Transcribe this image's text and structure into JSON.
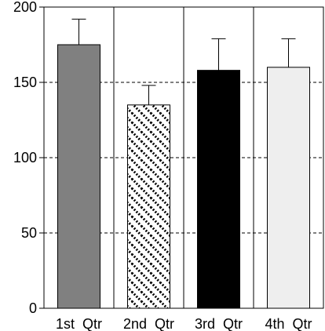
{
  "chart_data": {
    "type": "bar",
    "categories": [
      "1st  Qtr",
      "2nd  Qtr",
      "3rd  Qtr",
      "4th  Qtr"
    ],
    "series": [
      {
        "values": [
          175,
          135,
          158,
          160
        ],
        "errors": [
          17,
          13,
          21,
          19
        ],
        "fills": [
          "#808080",
          "hatch",
          "#000000",
          "#eeeeee"
        ]
      }
    ],
    "ylim": [
      0,
      200
    ],
    "yticks": [
      0,
      50,
      100,
      150,
      200
    ],
    "ytick_labels": [
      "0",
      "50",
      "100",
      "150",
      "200"
    ],
    "dashed_gridlines_at": [
      50,
      100,
      150
    ],
    "vertical_separators": true,
    "title": "",
    "xlabel": "",
    "ylabel": "",
    "legend": "none"
  }
}
